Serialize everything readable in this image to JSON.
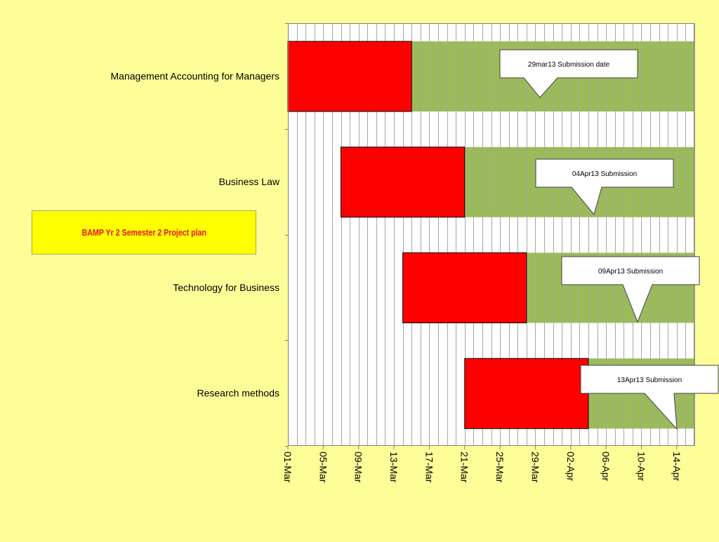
{
  "chart_data": {
    "type": "gantt",
    "title": "BAMP Yr 2 Semester 2 Project plan",
    "x_axis": {
      "type": "date",
      "range": [
        "01-Mar",
        "16-Apr"
      ],
      "tick_labels": [
        "01-Mar",
        "05-Mar",
        "09-Mar",
        "13-Mar",
        "17-Mar",
        "21-Mar",
        "25-Mar",
        "29-Mar",
        "02-Apr",
        "06-Apr",
        "10-Apr",
        "14-Apr"
      ],
      "vertical_gridlines": "daily"
    },
    "tasks": [
      {
        "name": "Management Accounting for Managers",
        "red_start": "01-Mar",
        "red_end": "15-Mar",
        "green_end": "16-Apr",
        "callout": "29mar13 Submission date"
      },
      {
        "name": "Business Law",
        "red_start": "07-Mar",
        "red_end": "21-Mar",
        "green_end": "16-Apr",
        "callout": "04Apr13 Submission"
      },
      {
        "name": "Technology for Business",
        "red_start": "14-Mar",
        "red_end": "28-Mar",
        "green_end": "16-Apr",
        "callout": "09Apr13 Submission"
      },
      {
        "name": "Research methods",
        "red_start": "21-Mar",
        "red_end": "04-Apr",
        "green_end": "16-Apr",
        "callout": "13Apr13 Submission"
      }
    ],
    "colors": {
      "red": "#ff0000",
      "green": "#9bbb59",
      "plot_bg": "#ffffff",
      "grid": "#a6a6a6",
      "page_bg": "#fefe99",
      "title_box": "#ffff00",
      "title_text": "#e8141e"
    }
  }
}
